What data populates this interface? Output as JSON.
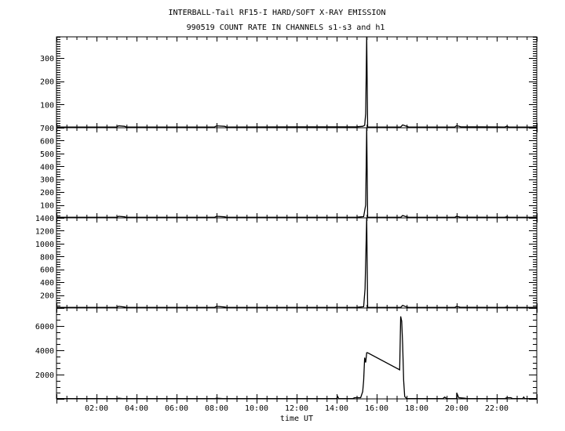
{
  "chart_data": {
    "type": "line",
    "title": "INTERBALL-Tail RF15-I HARD/SOFT X-RAY EMISSION",
    "subtitle": "990519  COUNT RATE IN CHANNELS s1-s3 and h1",
    "xlabel": "time UT",
    "xlim": [
      0,
      24
    ],
    "x_ticks": [
      2,
      4,
      6,
      8,
      10,
      12,
      14,
      16,
      18,
      20,
      22
    ],
    "x_tick_labels": [
      "02:00",
      "04:00",
      "06:00",
      "08:00",
      "10:00",
      "12:00",
      "14:00",
      "16:00",
      "18:00",
      "20:00",
      "22:00"
    ],
    "grid": false,
    "panels": [
      {
        "name": "s1",
        "ylim": [
          0,
          390
        ],
        "y_ticks": [
          100,
          200,
          300
        ],
        "y_tick_labels": [
          "100",
          "200",
          "300"
        ],
        "points": [
          [
            0,
            3
          ],
          [
            3.0,
            3
          ],
          [
            3.1,
            8
          ],
          [
            3.4,
            6
          ],
          [
            3.5,
            3
          ],
          [
            7.9,
            3
          ],
          [
            8.0,
            8
          ],
          [
            8.4,
            6
          ],
          [
            8.5,
            3
          ],
          [
            15.0,
            4
          ],
          [
            15.3,
            6
          ],
          [
            15.4,
            10
          ],
          [
            15.45,
            60
          ],
          [
            15.5,
            390
          ],
          [
            15.55,
            3
          ],
          [
            17.2,
            3
          ],
          [
            17.3,
            12
          ],
          [
            17.5,
            6
          ],
          [
            17.6,
            3
          ],
          [
            19.9,
            3
          ],
          [
            20.0,
            9
          ],
          [
            20.2,
            4
          ],
          [
            22.4,
            3
          ],
          [
            22.5,
            6
          ],
          [
            22.6,
            3
          ],
          [
            24,
            3
          ]
        ]
      },
      {
        "name": "s2",
        "ylim": [
          0,
          700
        ],
        "y_ticks": [
          100,
          200,
          300,
          400,
          500,
          600,
          700
        ],
        "y_tick_labels": [
          "100",
          "200",
          "300",
          "400",
          "500",
          "600",
          "700"
        ],
        "points": [
          [
            0,
            4
          ],
          [
            3.0,
            4
          ],
          [
            3.1,
            12
          ],
          [
            3.4,
            8
          ],
          [
            3.5,
            4
          ],
          [
            7.9,
            4
          ],
          [
            8.0,
            12
          ],
          [
            8.4,
            8
          ],
          [
            8.5,
            4
          ],
          [
            15.0,
            5
          ],
          [
            15.35,
            10
          ],
          [
            15.45,
            100
          ],
          [
            15.5,
            700
          ],
          [
            15.55,
            4
          ],
          [
            17.2,
            4
          ],
          [
            17.3,
            18
          ],
          [
            17.5,
            8
          ],
          [
            17.6,
            4
          ],
          [
            19.9,
            4
          ],
          [
            20.0,
            12
          ],
          [
            20.2,
            5
          ],
          [
            22.4,
            4
          ],
          [
            22.5,
            8
          ],
          [
            22.6,
            4
          ],
          [
            24,
            4
          ]
        ]
      },
      {
        "name": "s3",
        "ylim": [
          0,
          1400
        ],
        "y_ticks": [
          200,
          400,
          600,
          800,
          1000,
          1200,
          1400
        ],
        "y_tick_labels": [
          "200",
          "400",
          "600",
          "800",
          "1000",
          "1200",
          "1400"
        ],
        "points": [
          [
            0,
            8
          ],
          [
            3.0,
            8
          ],
          [
            3.1,
            25
          ],
          [
            3.4,
            15
          ],
          [
            3.5,
            8
          ],
          [
            7.9,
            8
          ],
          [
            8.0,
            25
          ],
          [
            8.4,
            15
          ],
          [
            8.5,
            8
          ],
          [
            15.0,
            10
          ],
          [
            15.35,
            20
          ],
          [
            15.42,
            300
          ],
          [
            15.5,
            1400
          ],
          [
            15.55,
            8
          ],
          [
            17.2,
            8
          ],
          [
            17.3,
            40
          ],
          [
            17.5,
            15
          ],
          [
            17.6,
            8
          ],
          [
            19.9,
            8
          ],
          [
            20.0,
            25
          ],
          [
            20.2,
            10
          ],
          [
            22.4,
            8
          ],
          [
            22.5,
            15
          ],
          [
            22.6,
            8
          ],
          [
            24,
            8
          ]
        ]
      },
      {
        "name": "h1",
        "ylim": [
          0,
          7500
        ],
        "y_ticks": [
          2000,
          4000,
          6000
        ],
        "y_tick_labels": [
          "2000",
          "4000",
          "6000"
        ],
        "points": [
          [
            0,
            20
          ],
          [
            3.0,
            20
          ],
          [
            3.1,
            60
          ],
          [
            3.3,
            20
          ],
          [
            7.9,
            20
          ],
          [
            8.0,
            60
          ],
          [
            8.3,
            20
          ],
          [
            14.0,
            20
          ],
          [
            14.05,
            200
          ],
          [
            14.1,
            20
          ],
          [
            14.8,
            20
          ],
          [
            14.9,
            100
          ],
          [
            15.2,
            100
          ],
          [
            15.3,
            600
          ],
          [
            15.35,
            1500
          ],
          [
            15.4,
            3400
          ],
          [
            15.45,
            3000
          ],
          [
            15.5,
            3800
          ],
          [
            15.55,
            3800
          ],
          [
            17.15,
            2400
          ],
          [
            17.2,
            6800
          ],
          [
            17.25,
            6400
          ],
          [
            17.3,
            4500
          ],
          [
            17.35,
            1500
          ],
          [
            17.4,
            200
          ],
          [
            17.5,
            20
          ],
          [
            19.3,
            20
          ],
          [
            19.4,
            150
          ],
          [
            19.5,
            20
          ],
          [
            20.0,
            20
          ],
          [
            20.0,
            500
          ],
          [
            20.1,
            100
          ],
          [
            20.4,
            50
          ],
          [
            20.5,
            20
          ],
          [
            22.4,
            20
          ],
          [
            22.5,
            100
          ],
          [
            22.7,
            100
          ],
          [
            22.8,
            20
          ],
          [
            23.3,
            20
          ],
          [
            23.35,
            150
          ],
          [
            23.4,
            20
          ],
          [
            24,
            20
          ]
        ]
      }
    ]
  }
}
